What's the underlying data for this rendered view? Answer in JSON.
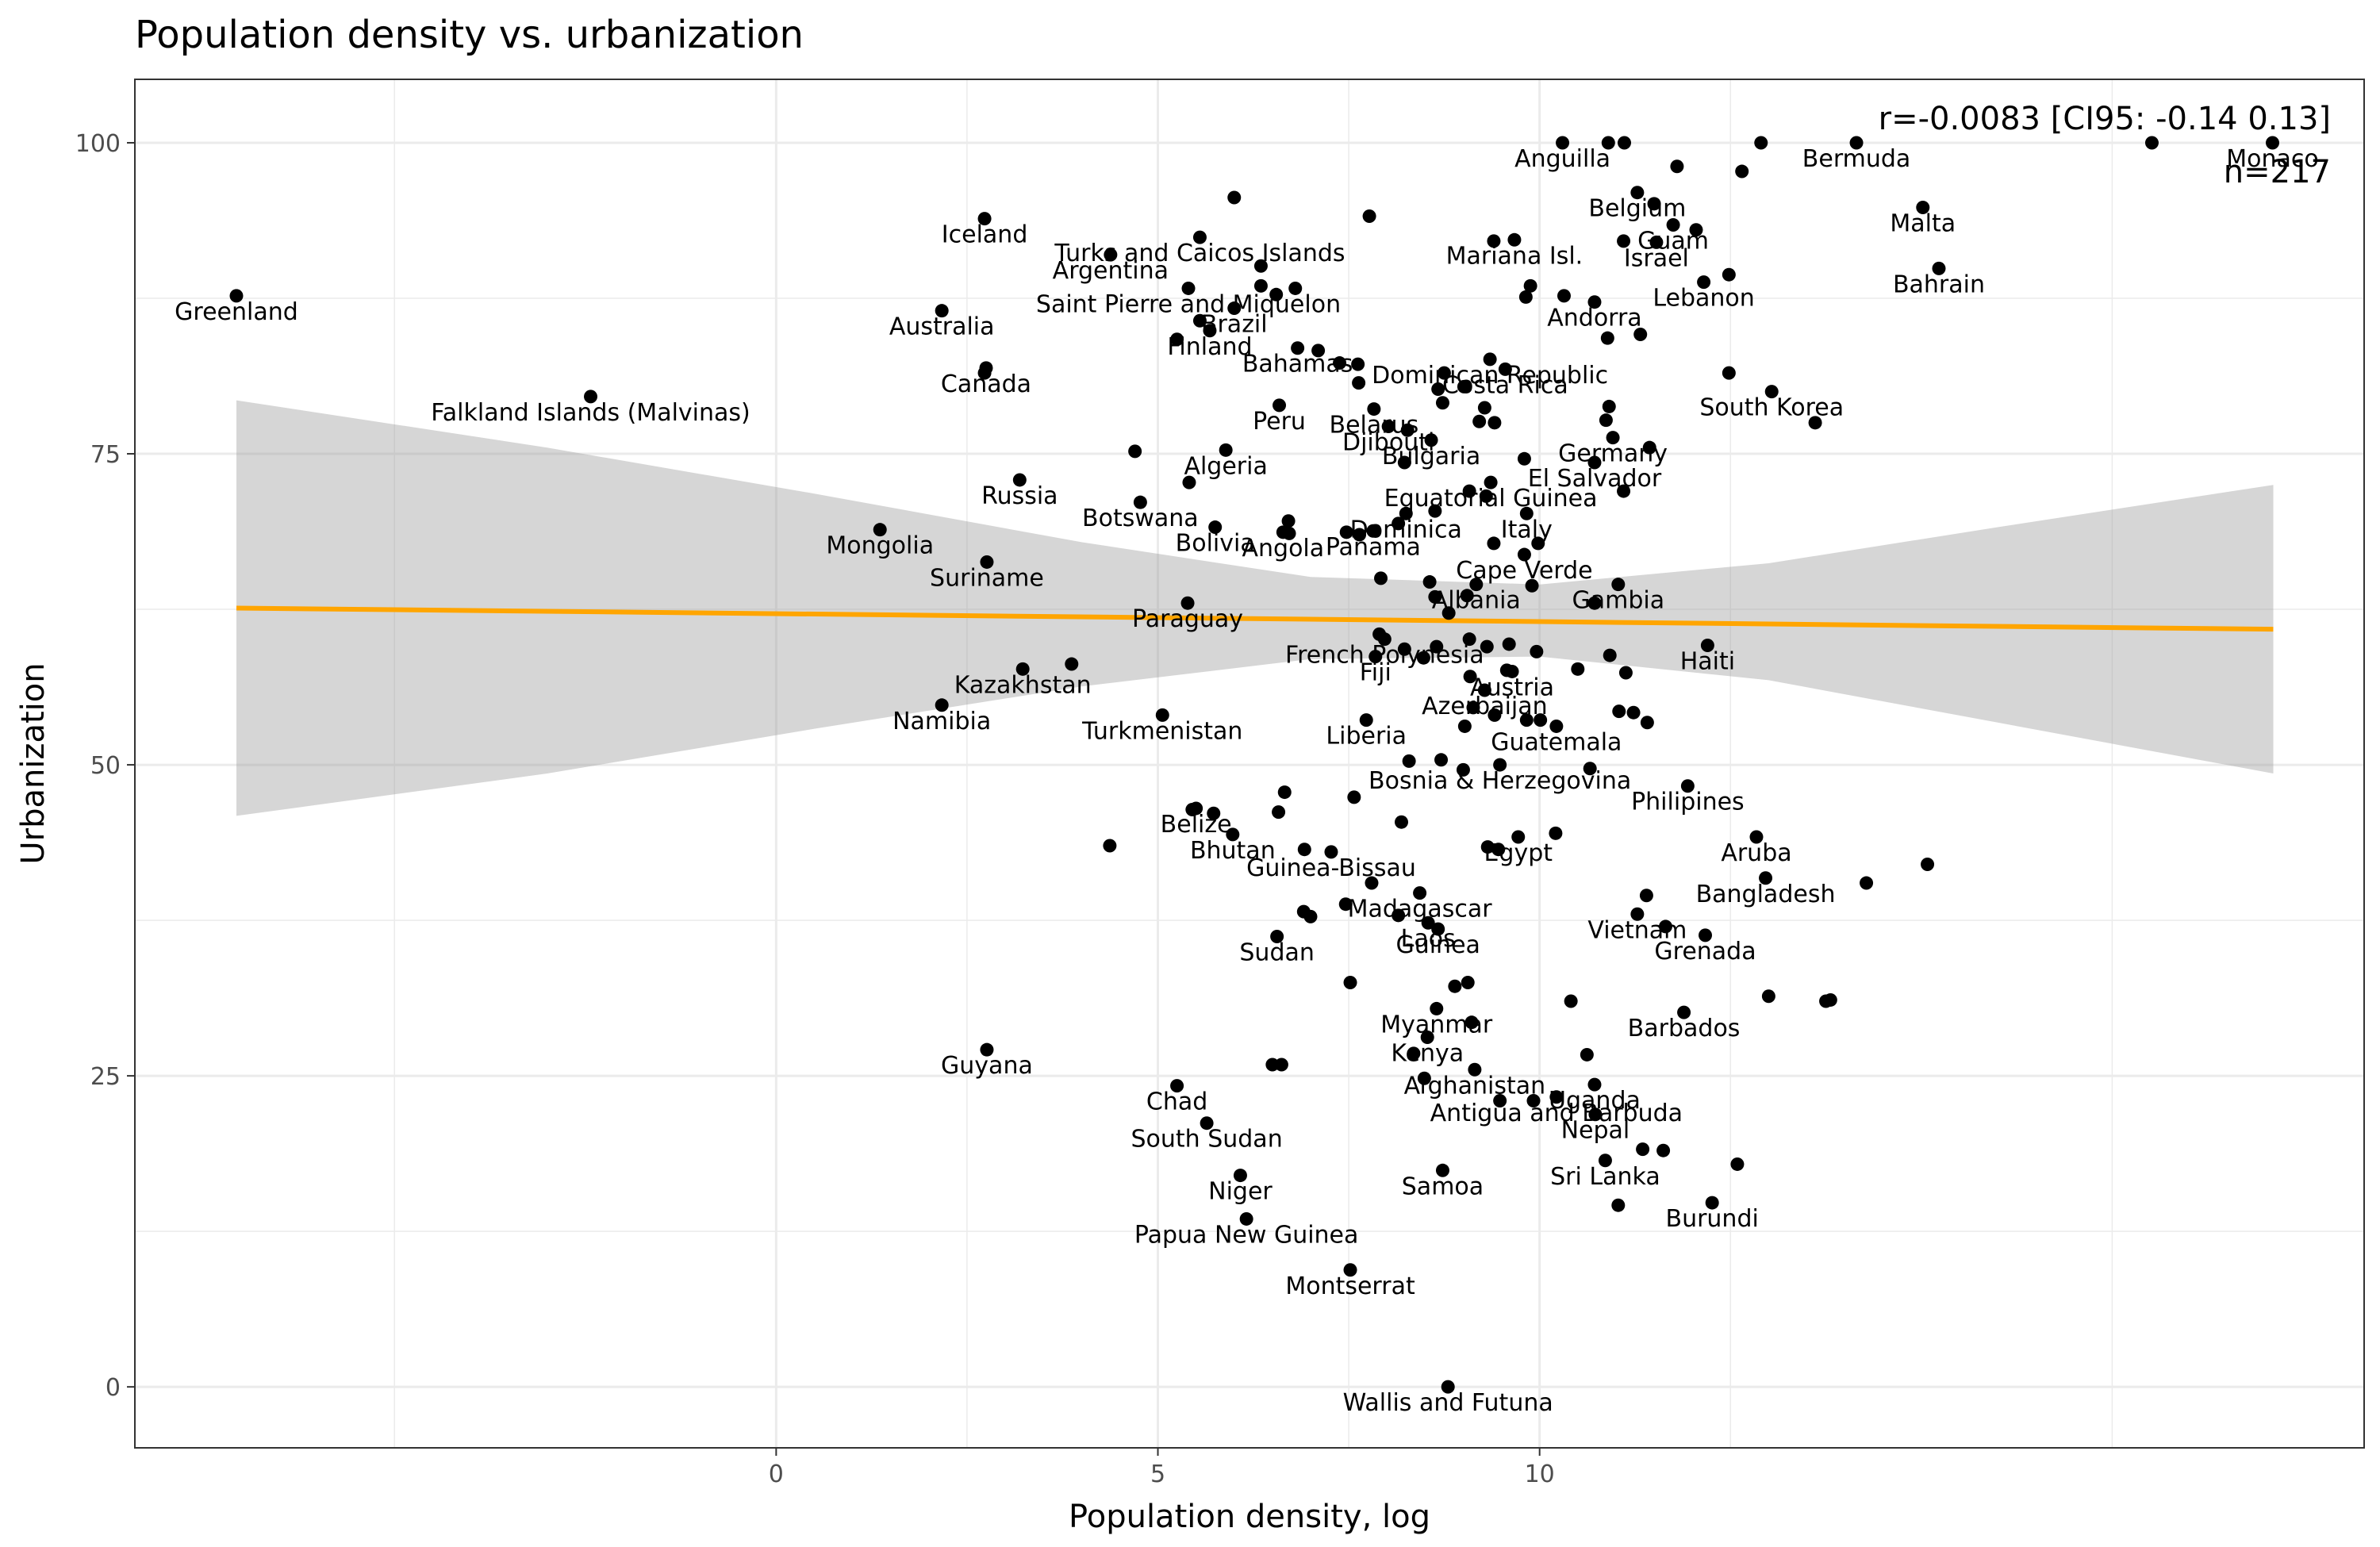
{
  "chart_data": {
    "type": "scatter",
    "title": "Population density vs. urbanization",
    "xlabel": "Population density, log",
    "ylabel": "Urbanization",
    "xlim": [
      -8.4,
      20.8
    ],
    "ylim": [
      -4.9,
      105.1
    ],
    "x_ticks": [
      0,
      5,
      10
    ],
    "y_ticks": [
      0,
      25,
      50,
      75,
      100
    ],
    "grid": true,
    "stat_r": "r=-0.0083 [CI95: -0.14 0.13]",
    "stat_n": "n=217",
    "colors": {
      "line": "#FFA500",
      "ribbon": "#999999",
      "points": "#000000",
      "grid": "#EBEBEB",
      "panel_border": "#333333"
    },
    "regression_line": {
      "x": [
        -7.07,
        19.61
      ],
      "y": [
        62.6,
        60.9
      ]
    },
    "confidence_band": {
      "x": [
        -7.07,
        -3.0,
        0.5,
        4.0,
        7.0,
        10.0,
        13.0,
        16.0,
        19.61
      ],
      "upper": [
        79.3,
        75.5,
        71.8,
        67.9,
        65.1,
        64.5,
        66.2,
        69.1,
        72.5
      ],
      "lower": [
        45.9,
        49.3,
        52.9,
        56.3,
        58.5,
        58.7,
        56.8,
        53.4,
        49.3
      ]
    },
    "points": [
      {
        "x": 19.6,
        "y": 100,
        "label": "Monaco"
      },
      {
        "x": 18.02,
        "y": 100,
        "label": ""
      },
      {
        "x": 14.15,
        "y": 100,
        "label": "Bermuda"
      },
      {
        "x": 12.9,
        "y": 100,
        "label": ""
      },
      {
        "x": 11.11,
        "y": 100,
        "label": ""
      },
      {
        "x": 10.9,
        "y": 100,
        "label": ""
      },
      {
        "x": 10.3,
        "y": 100,
        "label": "Anguilla"
      },
      {
        "x": 12.65,
        "y": 97.7,
        "label": ""
      },
      {
        "x": 11.8,
        "y": 98.1,
        "label": ""
      },
      {
        "x": 11.28,
        "y": 96,
        "label": "Belgium"
      },
      {
        "x": 15.02,
        "y": 94.8,
        "label": "Malta"
      },
      {
        "x": 6.0,
        "y": 95.6,
        "label": ""
      },
      {
        "x": 11.5,
        "y": 95.1,
        "label": ""
      },
      {
        "x": 7.77,
        "y": 94.1,
        "label": ""
      },
      {
        "x": 11.75,
        "y": 93.4,
        "label": "Guam"
      },
      {
        "x": 12.05,
        "y": 93,
        "label": ""
      },
      {
        "x": 2.73,
        "y": 93.9,
        "label": "Iceland"
      },
      {
        "x": 5.55,
        "y": 92.4,
        "label": "Turks and Caicos Islands"
      },
      {
        "x": 9.4,
        "y": 92.1,
        "label": ""
      },
      {
        "x": 9.67,
        "y": 92.2,
        "label": "Mariana Isl."
      },
      {
        "x": 11.1,
        "y": 92.1,
        "label": ""
      },
      {
        "x": 11.53,
        "y": 92.0,
        "label": "Israel"
      },
      {
        "x": 4.38,
        "y": 91.0,
        "label": "Argentina"
      },
      {
        "x": 6.35,
        "y": 90.1,
        "label": ""
      },
      {
        "x": 15.23,
        "y": 89.9,
        "label": "Bahrain"
      },
      {
        "x": 12.48,
        "y": 89.4,
        "label": ""
      },
      {
        "x": 12.15,
        "y": 88.8,
        "label": "Lebanon"
      },
      {
        "x": 5.4,
        "y": 88.3,
        "label": "Saint Pierre and Miquelon"
      },
      {
        "x": 6.35,
        "y": 88.5,
        "label": ""
      },
      {
        "x": 6.55,
        "y": 87.8,
        "label": ""
      },
      {
        "x": 6.8,
        "y": 88.3,
        "label": ""
      },
      {
        "x": 9.88,
        "y": 88.5,
        "label": ""
      },
      {
        "x": 9.82,
        "y": 87.6,
        "label": ""
      },
      {
        "x": 10.32,
        "y": 87.7,
        "label": ""
      },
      {
        "x": -7.07,
        "y": 87.7,
        "label": "Greenland"
      },
      {
        "x": 6.0,
        "y": 86.7,
        "label": "Brazil"
      },
      {
        "x": 10.72,
        "y": 87.2,
        "label": "Andorra"
      },
      {
        "x": 2.17,
        "y": 86.5,
        "label": "Australia"
      },
      {
        "x": 5.55,
        "y": 85.7,
        "label": ""
      },
      {
        "x": 5.68,
        "y": 84.9,
        "label": "Finland"
      },
      {
        "x": 5.25,
        "y": 84.2,
        "label": ""
      },
      {
        "x": 10.89,
        "y": 84.3,
        "label": ""
      },
      {
        "x": 11.32,
        "y": 84.6,
        "label": ""
      },
      {
        "x": 6.83,
        "y": 83.5,
        "label": "Bahamas"
      },
      {
        "x": 7.1,
        "y": 83.3,
        "label": ""
      },
      {
        "x": 7.38,
        "y": 82.3,
        "label": ""
      },
      {
        "x": 7.62,
        "y": 82.2,
        "label": ""
      },
      {
        "x": 8.75,
        "y": 81.5,
        "label": ""
      },
      {
        "x": 9.35,
        "y": 82.6,
        "label": "Dominican Republic"
      },
      {
        "x": 9.55,
        "y": 81.8,
        "label": "Costa Rica"
      },
      {
        "x": 12.48,
        "y": 81.5,
        "label": ""
      },
      {
        "x": 2.73,
        "y": 81.5,
        "label": ""
      },
      {
        "x": 2.75,
        "y": 81.9,
        "label": "Canada"
      },
      {
        "x": 7.63,
        "y": 80.7,
        "label": ""
      },
      {
        "x": 8.67,
        "y": 80.2,
        "label": ""
      },
      {
        "x": 9.01,
        "y": 80.4,
        "label": ""
      },
      {
        "x": 13.04,
        "y": 80.0,
        "label": "South Korea"
      },
      {
        "x": -2.43,
        "y": 79.6,
        "label": "Falkland Islands (Malvinas)"
      },
      {
        "x": 7.83,
        "y": 78.6,
        "label": "Belarus"
      },
      {
        "x": 8.73,
        "y": 79.1,
        "label": ""
      },
      {
        "x": 9.28,
        "y": 78.7,
        "label": ""
      },
      {
        "x": 10.91,
        "y": 78.8,
        "label": ""
      },
      {
        "x": 6.59,
        "y": 78.9,
        "label": "Peru"
      },
      {
        "x": 8.02,
        "y": 77.2,
        "label": "Djibouti"
      },
      {
        "x": 9.21,
        "y": 77.6,
        "label": ""
      },
      {
        "x": 9.41,
        "y": 77.5,
        "label": ""
      },
      {
        "x": 10.87,
        "y": 77.7,
        "label": ""
      },
      {
        "x": 13.61,
        "y": 77.5,
        "label": ""
      },
      {
        "x": 8.27,
        "y": 76.9,
        "label": ""
      },
      {
        "x": 8.58,
        "y": 76.1,
        "label": "Bulgaria"
      },
      {
        "x": 10.96,
        "y": 76.3,
        "label": "Germany"
      },
      {
        "x": 11.44,
        "y": 75.5,
        "label": ""
      },
      {
        "x": 4.7,
        "y": 75.2,
        "label": ""
      },
      {
        "x": 5.89,
        "y": 75.3,
        "label": "Algeria"
      },
      {
        "x": 9.8,
        "y": 74.6,
        "label": ""
      },
      {
        "x": 10.72,
        "y": 74.3,
        "label": "El Salvador"
      },
      {
        "x": 8.23,
        "y": 74.3,
        "label": ""
      },
      {
        "x": 3.19,
        "y": 72.9,
        "label": "Russia"
      },
      {
        "x": 5.41,
        "y": 72.7,
        "label": ""
      },
      {
        "x": 9.36,
        "y": 72.7,
        "label": "Equatorial Guinea"
      },
      {
        "x": 9.08,
        "y": 72.0,
        "label": ""
      },
      {
        "x": 9.3,
        "y": 71.6,
        "label": ""
      },
      {
        "x": 11.1,
        "y": 72.0,
        "label": ""
      },
      {
        "x": 4.77,
        "y": 71.1,
        "label": "Botswana"
      },
      {
        "x": 8.63,
        "y": 70.4,
        "label": ""
      },
      {
        "x": 8.25,
        "y": 70.2,
        "label": "Dominica"
      },
      {
        "x": 9.83,
        "y": 70.2,
        "label": "Italy"
      },
      {
        "x": 6.71,
        "y": 69.6,
        "label": ""
      },
      {
        "x": 5.75,
        "y": 69.1,
        "label": "Bolivia"
      },
      {
        "x": 8.15,
        "y": 69.4,
        "label": ""
      },
      {
        "x": 6.72,
        "y": 68.6,
        "label": ""
      },
      {
        "x": 6.64,
        "y": 68.7,
        "label": "Angola"
      },
      {
        "x": 7.47,
        "y": 68.7,
        "label": ""
      },
      {
        "x": 7.64,
        "y": 68.5,
        "label": ""
      },
      {
        "x": 7.82,
        "y": 68.8,
        "label": "Panama"
      },
      {
        "x": 1.36,
        "y": 68.9,
        "label": "Mongolia"
      },
      {
        "x": 9.4,
        "y": 67.8,
        "label": ""
      },
      {
        "x": 9.98,
        "y": 67.8,
        "label": ""
      },
      {
        "x": 9.8,
        "y": 66.9,
        "label": "Cape Verde"
      },
      {
        "x": 2.76,
        "y": 66.3,
        "label": "Suriname"
      },
      {
        "x": 7.92,
        "y": 65.0,
        "label": ""
      },
      {
        "x": 8.56,
        "y": 64.7,
        "label": ""
      },
      {
        "x": 8.63,
        "y": 63.5,
        "label": ""
      },
      {
        "x": 9.17,
        "y": 64.5,
        "label": "Albania"
      },
      {
        "x": 9.05,
        "y": 63.6,
        "label": ""
      },
      {
        "x": 9.9,
        "y": 64.4,
        "label": ""
      },
      {
        "x": 11.03,
        "y": 64.5,
        "label": "Gambia"
      },
      {
        "x": 10.72,
        "y": 63.0,
        "label": ""
      },
      {
        "x": 5.39,
        "y": 63.0,
        "label": "Paraguay"
      },
      {
        "x": 8.81,
        "y": 62.2,
        "label": ""
      },
      {
        "x": 7.9,
        "y": 60.5,
        "label": ""
      },
      {
        "x": 7.97,
        "y": 60.1,
        "label": "French Polynesia"
      },
      {
        "x": 9.08,
        "y": 60.1,
        "label": ""
      },
      {
        "x": 9.6,
        "y": 59.7,
        "label": ""
      },
      {
        "x": 8.23,
        "y": 59.3,
        "label": ""
      },
      {
        "x": 8.65,
        "y": 59.5,
        "label": ""
      },
      {
        "x": 9.31,
        "y": 59.5,
        "label": ""
      },
      {
        "x": 9.96,
        "y": 59.1,
        "label": ""
      },
      {
        "x": 12.2,
        "y": 59.6,
        "label": "Haiti"
      },
      {
        "x": 7.85,
        "y": 58.7,
        "label": "Fiji"
      },
      {
        "x": 8.48,
        "y": 58.6,
        "label": ""
      },
      {
        "x": 9.57,
        "y": 57.6,
        "label": ""
      },
      {
        "x": 9.64,
        "y": 57.5,
        "label": "Austria"
      },
      {
        "x": 10.5,
        "y": 57.7,
        "label": ""
      },
      {
        "x": 10.92,
        "y": 58.8,
        "label": ""
      },
      {
        "x": 11.13,
        "y": 57.4,
        "label": ""
      },
      {
        "x": 9.09,
        "y": 57.1,
        "label": ""
      },
      {
        "x": 3.23,
        "y": 57.7,
        "label": "Kazakhstan"
      },
      {
        "x": 3.87,
        "y": 58.1,
        "label": ""
      },
      {
        "x": 9.28,
        "y": 56.0,
        "label": "Azerbaijan"
      },
      {
        "x": 2.17,
        "y": 54.8,
        "label": "Namibia"
      },
      {
        "x": 9.13,
        "y": 54.6,
        "label": ""
      },
      {
        "x": 9.41,
        "y": 54.0,
        "label": ""
      },
      {
        "x": 9.83,
        "y": 53.6,
        "label": ""
      },
      {
        "x": 10.01,
        "y": 53.6,
        "label": ""
      },
      {
        "x": 10.22,
        "y": 53.1,
        "label": "Guatemala"
      },
      {
        "x": 11.04,
        "y": 54.3,
        "label": ""
      },
      {
        "x": 11.23,
        "y": 54.2,
        "label": ""
      },
      {
        "x": 11.41,
        "y": 53.4,
        "label": ""
      },
      {
        "x": 9.02,
        "y": 53.1,
        "label": ""
      },
      {
        "x": 5.06,
        "y": 54.0,
        "label": "Turkmenistan"
      },
      {
        "x": 7.73,
        "y": 53.6,
        "label": "Liberia"
      },
      {
        "x": 8.29,
        "y": 50.3,
        "label": ""
      },
      {
        "x": 8.71,
        "y": 50.4,
        "label": ""
      },
      {
        "x": 9.0,
        "y": 49.6,
        "label": ""
      },
      {
        "x": 9.48,
        "y": 50.0,
        "label": "Bosnia & Herzegovina"
      },
      {
        "x": 10.66,
        "y": 49.7,
        "label": ""
      },
      {
        "x": 11.94,
        "y": 48.3,
        "label": "Philipines"
      },
      {
        "x": 7.57,
        "y": 47.4,
        "label": ""
      },
      {
        "x": 6.66,
        "y": 47.8,
        "label": ""
      },
      {
        "x": 5.5,
        "y": 46.5,
        "label": "Belize"
      },
      {
        "x": 6.58,
        "y": 46.2,
        "label": ""
      },
      {
        "x": 5.45,
        "y": 46.4,
        "label": ""
      },
      {
        "x": 5.73,
        "y": 46.1,
        "label": ""
      },
      {
        "x": 5.98,
        "y": 44.4,
        "label": "Bhutan"
      },
      {
        "x": 8.19,
        "y": 45.4,
        "label": ""
      },
      {
        "x": 6.92,
        "y": 43.2,
        "label": ""
      },
      {
        "x": 7.27,
        "y": 43.0,
        "label": "Guinea-Bissau"
      },
      {
        "x": 9.32,
        "y": 43.4,
        "label": ""
      },
      {
        "x": 9.46,
        "y": 43.2,
        "label": ""
      },
      {
        "x": 9.72,
        "y": 44.2,
        "label": "Egypt"
      },
      {
        "x": 10.21,
        "y": 44.5,
        "label": ""
      },
      {
        "x": 12.84,
        "y": 44.2,
        "label": "Aruba"
      },
      {
        "x": 4.37,
        "y": 43.5,
        "label": ""
      },
      {
        "x": 15.08,
        "y": 42.0,
        "label": ""
      },
      {
        "x": 14.28,
        "y": 40.5,
        "label": ""
      },
      {
        "x": 12.96,
        "y": 40.9,
        "label": "Bangladesh"
      },
      {
        "x": 7.8,
        "y": 40.5,
        "label": ""
      },
      {
        "x": 8.43,
        "y": 39.7,
        "label": "Madagascar"
      },
      {
        "x": 11.4,
        "y": 39.5,
        "label": ""
      },
      {
        "x": 7.46,
        "y": 38.8,
        "label": ""
      },
      {
        "x": 6.91,
        "y": 38.2,
        "label": ""
      },
      {
        "x": 7.0,
        "y": 37.8,
        "label": ""
      },
      {
        "x": 8.15,
        "y": 37.9,
        "label": ""
      },
      {
        "x": 8.54,
        "y": 37.3,
        "label": "Laos"
      },
      {
        "x": 11.28,
        "y": 38.0,
        "label": "Vietnam"
      },
      {
        "x": 11.65,
        "y": 37.0,
        "label": ""
      },
      {
        "x": 12.17,
        "y": 36.3,
        "label": "Grenada"
      },
      {
        "x": 6.56,
        "y": 36.2,
        "label": "Sudan"
      },
      {
        "x": 8.67,
        "y": 36.8,
        "label": "Guinea"
      },
      {
        "x": 7.52,
        "y": 32.5,
        "label": ""
      },
      {
        "x": 8.89,
        "y": 32.2,
        "label": ""
      },
      {
        "x": 9.06,
        "y": 32.5,
        "label": ""
      },
      {
        "x": 8.65,
        "y": 30.4,
        "label": "Myanmar"
      },
      {
        "x": 10.41,
        "y": 31.0,
        "label": ""
      },
      {
        "x": 13.0,
        "y": 31.4,
        "label": ""
      },
      {
        "x": 13.75,
        "y": 31.0,
        "label": ""
      },
      {
        "x": 13.81,
        "y": 31.1,
        "label": ""
      },
      {
        "x": 11.89,
        "y": 30.1,
        "label": "Barbados"
      },
      {
        "x": 9.11,
        "y": 29.3,
        "label": ""
      },
      {
        "x": 8.53,
        "y": 28.1,
        "label": "Kenya"
      },
      {
        "x": 2.76,
        "y": 27.1,
        "label": "Guyana"
      },
      {
        "x": 8.35,
        "y": 26.8,
        "label": ""
      },
      {
        "x": 10.62,
        "y": 26.7,
        "label": ""
      },
      {
        "x": 6.5,
        "y": 25.9,
        "label": ""
      },
      {
        "x": 6.62,
        "y": 25.9,
        "label": ""
      },
      {
        "x": 9.15,
        "y": 25.5,
        "label": "Afghanistan"
      },
      {
        "x": 8.49,
        "y": 24.8,
        "label": ""
      },
      {
        "x": 10.72,
        "y": 24.3,
        "label": "Uganda"
      },
      {
        "x": 5.25,
        "y": 24.2,
        "label": "Chad"
      },
      {
        "x": 9.48,
        "y": 23.0,
        "label": ""
      },
      {
        "x": 9.92,
        "y": 23.0,
        "label": ""
      },
      {
        "x": 10.22,
        "y": 23.3,
        "label": "Antigua and Barbuda"
      },
      {
        "x": 10.73,
        "y": 21.9,
        "label": "Nepal"
      },
      {
        "x": 5.64,
        "y": 21.2,
        "label": "South Sudan"
      },
      {
        "x": 11.35,
        "y": 19.1,
        "label": ""
      },
      {
        "x": 11.62,
        "y": 19.0,
        "label": ""
      },
      {
        "x": 10.86,
        "y": 18.2,
        "label": "Sri Lanka"
      },
      {
        "x": 12.59,
        "y": 17.9,
        "label": ""
      },
      {
        "x": 6.08,
        "y": 17.0,
        "label": "Niger"
      },
      {
        "x": 8.73,
        "y": 17.4,
        "label": "Samoa"
      },
      {
        "x": 11.03,
        "y": 14.6,
        "label": ""
      },
      {
        "x": 12.26,
        "y": 14.8,
        "label": "Burundi"
      },
      {
        "x": 6.16,
        "y": 13.5,
        "label": "Papua New Guinea"
      },
      {
        "x": 7.52,
        "y": 9.4,
        "label": "Montserrat"
      },
      {
        "x": 8.8,
        "y": 0.0,
        "label": "Wallis and Futuna"
      }
    ]
  }
}
